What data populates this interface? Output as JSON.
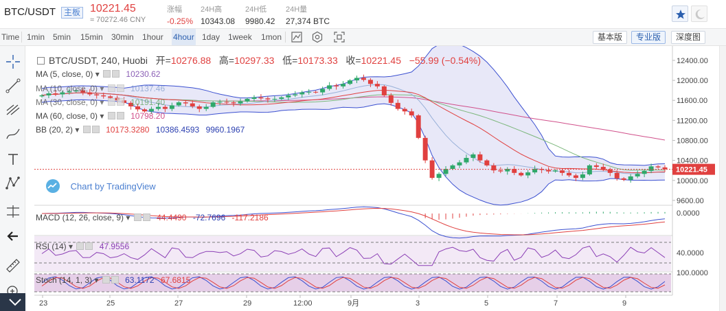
{
  "ticker": {
    "symbol": "BTC/USDT",
    "board": "主板",
    "price": "10221.45",
    "price_cny": "≈ 70272.46 CNY",
    "change_label": "涨幅",
    "change_value": "-0.25%",
    "high_label": "24H高",
    "high_value": "10343.08",
    "low_label": "24H低",
    "low_value": "9980.42",
    "volume_label": "24H量",
    "volume_value": "27,374 BTC"
  },
  "toolbar": {
    "timeframes": [
      "Time",
      "1min",
      "5min",
      "15min",
      "30min",
      "1hour",
      "4hour",
      "1day",
      "1week",
      "1mon"
    ],
    "active_timeframe": "4hour",
    "views": [
      "基本版",
      "专业版",
      "深度图"
    ],
    "active_view": "专业版"
  },
  "left_tools": [
    "crosshair-icon",
    "trend-line-icon",
    "fib-icon",
    "brush-icon",
    "text-icon",
    "pattern-icon",
    "measure-icon",
    "back-arrow-icon",
    "ruler-icon",
    "zoom-icon"
  ],
  "legend": {
    "title": "BTC/USDT, 240, Huobi",
    "open_label": "开=",
    "open_value": "10276.88",
    "high_label": "高=",
    "high_value": "10297.33",
    "low_label": "低=",
    "low_value": "10173.33",
    "close_label": "收=",
    "close_value": "10221.45",
    "change": "−55.99 (−0.54%)",
    "ma5": {
      "label": "MA (5, close, 0)",
      "value": "10230.62"
    },
    "ma10": {
      "label": "MA (10, close, 0)",
      "value": "10137.46"
    },
    "ma30": {
      "label": "MA (30, close, 0)",
      "value": "10191.40"
    },
    "ma60": {
      "label": "MA (60, close, 0)",
      "value": "10798.20"
    },
    "bb": {
      "label": "BB (20, 2)",
      "v1": "10173.3280",
      "v2": "10386.4593",
      "v3": "9960.1967"
    },
    "macd": {
      "label": "MACD (12, 26, close, 9)",
      "v1": "44.4490",
      "v2": "-72.7696",
      "v3": "-117.2186"
    },
    "rsi": {
      "label": "RSI (14)",
      "value": "47.9556"
    },
    "stoch": {
      "label": "Stoch (14, 1, 3)",
      "v1": "63.1172",
      "v2": "67.6815"
    },
    "tradingview": "Chart by TradingView"
  },
  "chart_data": {
    "type": "candlestick",
    "title": "BTC/USDT, 240, Huobi",
    "price_axis": {
      "ticks": [
        "12400.00",
        "12000.00",
        "11600.00",
        "11200.00",
        "10800.00",
        "10400.00",
        "10000.00",
        "9600.00"
      ],
      "tick_values": [
        12400,
        12000,
        11600,
        11200,
        10800,
        10400,
        10000,
        9600
      ],
      "range": [
        9530,
        12550
      ],
      "last_price_label": "10221.45",
      "last_price": 10221.45
    },
    "macd_axis": {
      "ticks": [
        "0.0000"
      ],
      "tick_values": [
        0
      ]
    },
    "rsi_axis": {
      "ticks": [
        "40.0000"
      ],
      "tick_values": [
        40
      ]
    },
    "stoch_axis": {
      "ticks": [
        "100.0000"
      ],
      "tick_values": [
        100
      ]
    },
    "x_labels": [
      "23",
      "25",
      "27",
      "29",
      "12:00",
      "9月",
      "3",
      "5",
      "7",
      "9"
    ],
    "closes": [
      11700,
      11740,
      11720,
      11760,
      11780,
      11800,
      11760,
      11720,
      11700,
      11680,
      11650,
      11600,
      11550,
      11480,
      11420,
      11380,
      11430,
      11470,
      11430,
      11500,
      11560,
      11540,
      11480,
      11430,
      11470,
      11560,
      11570,
      11560,
      11540,
      11580,
      11630,
      11660,
      11640,
      11620,
      11630,
      11660,
      11700,
      11720,
      11760,
      11770,
      11760,
      11830,
      11900,
      11880,
      11930,
      12000,
      12050,
      12010,
      11930,
      11880,
      11700,
      11550,
      11430,
      11380,
      11300,
      10850,
      10400,
      10050,
      10130,
      10230,
      10300,
      10360,
      10450,
      10520,
      10400,
      10300,
      10200,
      10180,
      10230,
      10150,
      10100,
      10160,
      10230,
      10210,
      10180,
      10200,
      10150,
      10100,
      10050,
      10120,
      10300,
      10270,
      10220,
      10150,
      10040,
      10010,
      10080,
      10130,
      10190,
      10280,
      10260,
      10221.45
    ]
  }
}
